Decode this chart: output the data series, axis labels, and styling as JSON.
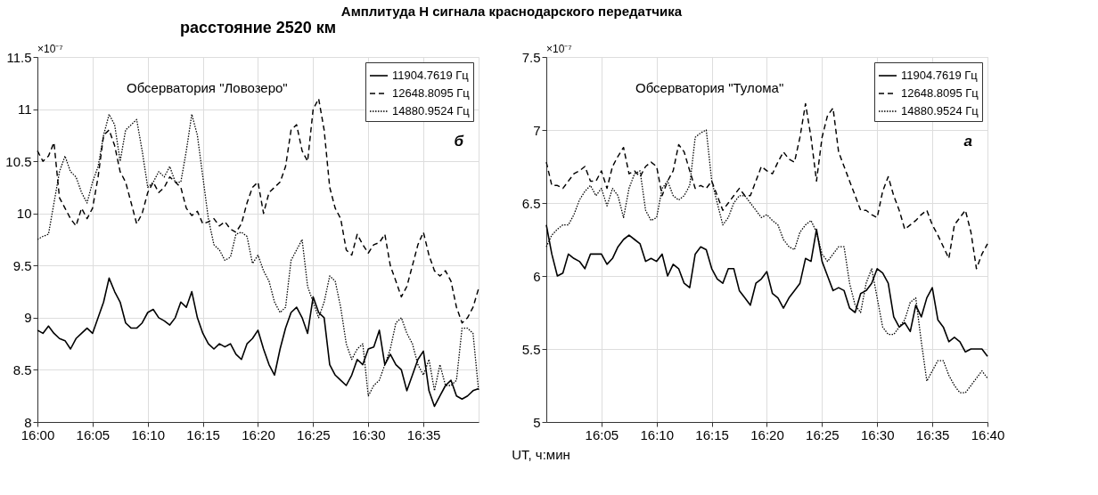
{
  "chart_data": [
    {
      "type": "line",
      "title": "Амплитуда H сигнала краснодарского передатчика",
      "subtitle": "расстояние 2520 км",
      "xlabel": "UT, ч:мин",
      "annotations": [
        "×10⁻⁷",
        "Обсерватория \"Ловозеро\"",
        "б"
      ],
      "xlim": [
        16,
        16.6667
      ],
      "xticks": [
        {
          "value": 16,
          "label": "16:00"
        },
        {
          "value": 16.0833,
          "label": "16:05"
        },
        {
          "value": 16.1667,
          "label": "16:10"
        },
        {
          "value": 16.25,
          "label": "16:15"
        },
        {
          "value": 16.3333,
          "label": "16:20"
        },
        {
          "value": 16.4167,
          "label": "16:25"
        },
        {
          "value": 16.5,
          "label": "16:30"
        },
        {
          "value": 16.5833,
          "label": "16:35"
        }
      ],
      "ylim": [
        8,
        11.5
      ],
      "yticks": [
        8,
        8.5,
        9,
        9.5,
        10,
        10.5,
        11,
        11.5
      ],
      "grid": true,
      "legend": "top right",
      "x": [
        16,
        16.0083,
        16.0167,
        16.025,
        16.0333,
        16.0417,
        16.05,
        16.0583,
        16.0667,
        16.075,
        16.0833,
        16.0917,
        16.1,
        16.1083,
        16.1167,
        16.125,
        16.1333,
        16.1417,
        16.15,
        16.1583,
        16.1667,
        16.175,
        16.1833,
        16.1917,
        16.2,
        16.2083,
        16.2167,
        16.225,
        16.2333,
        16.2417,
        16.25,
        16.2583,
        16.2667,
        16.275,
        16.2833,
        16.2917,
        16.3,
        16.3083,
        16.3167,
        16.325,
        16.3333,
        16.3417,
        16.35,
        16.3583,
        16.3667,
        16.375,
        16.3833,
        16.3917,
        16.4,
        16.4083,
        16.4167,
        16.425,
        16.4333,
        16.4417,
        16.45,
        16.4583,
        16.4667,
        16.475,
        16.4833,
        16.4917,
        16.5,
        16.5083,
        16.5167,
        16.525,
        16.5333,
        16.5417,
        16.55,
        16.5583,
        16.5667,
        16.575,
        16.5833,
        16.5917,
        16.6,
        16.6083,
        16.6167,
        16.625,
        16.6333,
        16.6417,
        16.65,
        16.6583,
        16.6667
      ],
      "series": [
        {
          "name": "11904.7619 Гц",
          "color": "#000000",
          "line_style": "solid",
          "values": [
            8.88,
            8.85,
            8.92,
            8.85,
            8.8,
            8.78,
            8.7,
            8.8,
            8.85,
            8.9,
            8.85,
            9.0,
            9.15,
            9.38,
            9.25,
            9.15,
            8.95,
            8.9,
            8.9,
            8.95,
            9.05,
            9.08,
            9.0,
            8.97,
            8.93,
            9.0,
            9.15,
            9.1,
            9.25,
            9.0,
            8.85,
            8.75,
            8.7,
            8.75,
            8.72,
            8.75,
            8.65,
            8.6,
            8.75,
            8.8,
            8.88,
            8.7,
            8.55,
            8.45,
            8.7,
            8.9,
            9.05,
            9.1,
            9.0,
            8.85,
            9.2,
            9.05,
            9.0,
            8.55,
            8.45,
            8.4,
            8.35,
            8.45,
            8.6,
            8.55,
            8.7,
            8.72,
            8.88,
            8.55,
            8.65,
            8.55,
            8.5,
            8.3,
            8.45,
            8.6,
            8.68,
            8.3,
            8.15,
            8.25,
            8.35,
            8.4,
            8.25,
            8.22,
            8.25,
            8.3,
            8.32
          ]
        },
        {
          "name": "12648.8095 Гц",
          "color": "#000000",
          "line_style": "dashed",
          "values": [
            10.6,
            10.5,
            10.55,
            10.68,
            10.15,
            10.05,
            9.95,
            9.88,
            10.05,
            9.95,
            10.05,
            10.35,
            10.75,
            10.8,
            10.65,
            10.4,
            10.3,
            10.1,
            9.9,
            10.0,
            10.2,
            10.3,
            10.2,
            10.25,
            10.35,
            10.3,
            10.25,
            10.05,
            9.98,
            10.02,
            9.9,
            9.92,
            9.95,
            9.88,
            9.92,
            9.85,
            9.82,
            9.9,
            10.1,
            10.25,
            10.3,
            10.0,
            10.2,
            10.25,
            10.3,
            10.45,
            10.8,
            10.85,
            10.6,
            10.5,
            11.0,
            11.1,
            10.8,
            10.25,
            10.05,
            9.95,
            9.65,
            9.6,
            9.8,
            9.7,
            9.62,
            9.7,
            9.72,
            9.8,
            9.5,
            9.35,
            9.2,
            9.3,
            9.5,
            9.7,
            9.82,
            9.6,
            9.45,
            9.4,
            9.45,
            9.35,
            9.1,
            8.95,
            9.0,
            9.1,
            9.28
          ]
        },
        {
          "name": "14880.9524 Гц",
          "color": "#000000",
          "line_style": "dotted",
          "values": [
            9.75,
            9.78,
            9.8,
            10.1,
            10.4,
            10.55,
            10.4,
            10.35,
            10.2,
            10.1,
            10.3,
            10.45,
            10.75,
            10.95,
            10.85,
            10.5,
            10.8,
            10.85,
            10.9,
            10.6,
            10.25,
            10.3,
            10.4,
            10.35,
            10.45,
            10.3,
            10.3,
            10.6,
            10.95,
            10.75,
            10.35,
            9.95,
            9.7,
            9.65,
            9.55,
            9.58,
            9.8,
            9.82,
            9.78,
            9.52,
            9.6,
            9.45,
            9.35,
            9.15,
            9.05,
            9.1,
            9.55,
            9.65,
            9.75,
            9.3,
            9.15,
            9.0,
            9.15,
            9.4,
            9.35,
            9.1,
            8.75,
            8.6,
            8.7,
            8.75,
            8.25,
            8.35,
            8.4,
            8.55,
            8.7,
            8.95,
            9.0,
            8.85,
            8.75,
            8.55,
            8.45,
            8.6,
            8.3,
            8.55,
            8.35,
            8.35,
            8.4,
            8.9,
            8.9,
            8.85,
            8.3
          ]
        }
      ]
    },
    {
      "type": "line",
      "annotations": [
        "×10⁻⁷",
        "Обсерватория \"Тулома\"",
        "а"
      ],
      "xlim": [
        16,
        16.6667
      ],
      "xticks": [
        {
          "value": 16.0833,
          "label": "16:05"
        },
        {
          "value": 16.1667,
          "label": "16:10"
        },
        {
          "value": 16.25,
          "label": "16:15"
        },
        {
          "value": 16.3333,
          "label": "16:20"
        },
        {
          "value": 16.4167,
          "label": "16:25"
        },
        {
          "value": 16.5,
          "label": "16:30"
        },
        {
          "value": 16.5833,
          "label": "16:35"
        },
        {
          "value": 16.6667,
          "label": "16:40"
        }
      ],
      "ylim": [
        5,
        7.5
      ],
      "yticks": [
        5,
        5.5,
        6,
        6.5,
        7,
        7.5
      ],
      "grid": true,
      "legend": "top right",
      "x": [
        16,
        16.0083,
        16.0167,
        16.025,
        16.0333,
        16.0417,
        16.05,
        16.0583,
        16.0667,
        16.075,
        16.0833,
        16.0917,
        16.1,
        16.1083,
        16.1167,
        16.125,
        16.1333,
        16.1417,
        16.15,
        16.1583,
        16.1667,
        16.175,
        16.1833,
        16.1917,
        16.2,
        16.2083,
        16.2167,
        16.225,
        16.2333,
        16.2417,
        16.25,
        16.2583,
        16.2667,
        16.275,
        16.2833,
        16.2917,
        16.3,
        16.3083,
        16.3167,
        16.325,
        16.3333,
        16.3417,
        16.35,
        16.3583,
        16.3667,
        16.375,
        16.3833,
        16.3917,
        16.4,
        16.4083,
        16.4167,
        16.425,
        16.4333,
        16.4417,
        16.45,
        16.4583,
        16.4667,
        16.475,
        16.4833,
        16.4917,
        16.5,
        16.5083,
        16.5167,
        16.525,
        16.5333,
        16.5417,
        16.55,
        16.5583,
        16.5667,
        16.575,
        16.5833,
        16.5917,
        16.6,
        16.6083,
        16.6167,
        16.625,
        16.6333,
        16.6417,
        16.65,
        16.6583,
        16.6667
      ],
      "series": [
        {
          "name": "11904.7619 Гц",
          "color": "#000000",
          "line_style": "solid",
          "values": [
            6.35,
            6.15,
            6.0,
            6.02,
            6.15,
            6.12,
            6.1,
            6.05,
            6.15,
            6.15,
            6.15,
            6.08,
            6.12,
            6.2,
            6.25,
            6.28,
            6.25,
            6.22,
            6.1,
            6.12,
            6.1,
            6.15,
            6.0,
            6.08,
            6.05,
            5.95,
            5.92,
            6.15,
            6.2,
            6.18,
            6.05,
            5.98,
            5.95,
            6.05,
            6.05,
            5.9,
            5.85,
            5.8,
            5.95,
            5.98,
            6.03,
            5.88,
            5.85,
            5.78,
            5.85,
            5.9,
            5.95,
            6.12,
            6.1,
            6.32,
            6.1,
            6.0,
            5.9,
            5.92,
            5.9,
            5.78,
            5.75,
            5.88,
            5.9,
            5.95,
            6.05,
            6.02,
            5.95,
            5.72,
            5.65,
            5.68,
            5.62,
            5.8,
            5.72,
            5.85,
            5.92,
            5.7,
            5.65,
            5.55,
            5.58,
            5.55,
            5.48,
            5.5,
            5.5,
            5.5,
            5.45
          ]
        },
        {
          "name": "12648.8095 Гц",
          "color": "#000000",
          "line_style": "dashed",
          "values": [
            6.78,
            6.62,
            6.62,
            6.6,
            6.65,
            6.7,
            6.72,
            6.75,
            6.65,
            6.65,
            6.72,
            6.6,
            6.75,
            6.82,
            6.88,
            6.7,
            6.72,
            6.68,
            6.75,
            6.78,
            6.75,
            6.55,
            6.65,
            6.72,
            6.9,
            6.85,
            6.72,
            6.6,
            6.62,
            6.6,
            6.65,
            6.55,
            6.45,
            6.5,
            6.55,
            6.6,
            6.55,
            6.55,
            6.65,
            6.75,
            6.72,
            6.7,
            6.78,
            6.85,
            6.8,
            6.78,
            6.95,
            7.18,
            6.95,
            6.65,
            6.95,
            7.1,
            7.15,
            6.85,
            6.75,
            6.65,
            6.55,
            6.45,
            6.45,
            6.42,
            6.4,
            6.58,
            6.68,
            6.55,
            6.45,
            6.32,
            6.35,
            6.38,
            6.42,
            6.45,
            6.35,
            6.28,
            6.2,
            6.12,
            6.35,
            6.4,
            6.45,
            6.3,
            6.05,
            6.15,
            6.22
          ]
        },
        {
          "name": "14880.9524 Гц",
          "color": "#000000",
          "line_style": "dotted",
          "values": [
            6.2,
            6.28,
            6.32,
            6.35,
            6.35,
            6.42,
            6.52,
            6.58,
            6.62,
            6.55,
            6.6,
            6.48,
            6.6,
            6.55,
            6.4,
            6.6,
            6.7,
            6.72,
            6.45,
            6.38,
            6.4,
            6.6,
            6.65,
            6.55,
            6.52,
            6.55,
            6.62,
            6.95,
            6.98,
            7.0,
            6.65,
            6.5,
            6.35,
            6.4,
            6.5,
            6.55,
            6.55,
            6.5,
            6.45,
            6.4,
            6.42,
            6.38,
            6.35,
            6.25,
            6.2,
            6.18,
            6.3,
            6.35,
            6.38,
            6.3,
            6.15,
            6.1,
            6.15,
            6.2,
            6.2,
            5.95,
            5.8,
            5.75,
            5.95,
            6.05,
            5.85,
            5.65,
            5.6,
            5.6,
            5.65,
            5.7,
            5.82,
            5.85,
            5.55,
            5.28,
            5.35,
            5.42,
            5.42,
            5.32,
            5.25,
            5.2,
            5.2,
            5.25,
            5.3,
            5.35,
            5.3
          ]
        }
      ]
    }
  ]
}
